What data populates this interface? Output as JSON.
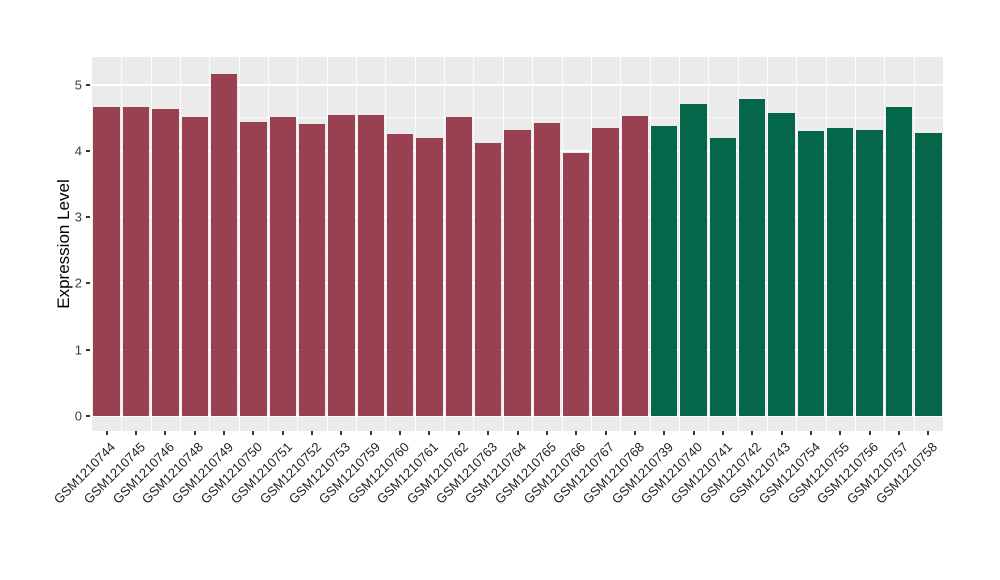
{
  "figure": {
    "background": "#FFFFFF"
  },
  "chart_data": {
    "type": "bar",
    "title": "",
    "xlabel": "",
    "ylabel": "Expression Level",
    "ylim": [
      0,
      5.41
    ],
    "yticks": [
      "0",
      "1",
      "2",
      "3",
      "4",
      "5"
    ],
    "ytick_values": [
      0,
      1,
      2,
      3,
      4,
      5
    ],
    "minor_ytick_values": [
      0.5,
      1.5,
      2.5,
      3.5,
      4.5
    ],
    "grid": "on",
    "legend": "none",
    "panel_background": "#EBEBEB",
    "gridline_color": "#FFFFFF",
    "colors": {
      "maroon": "#9A4151",
      "green": "#056749"
    },
    "categories": [
      "GSM1210744",
      "GSM1210745",
      "GSM1210746",
      "GSM1210748",
      "GSM1210749",
      "GSM1210750",
      "GSM1210751",
      "GSM1210752",
      "GSM1210753",
      "GSM1210759",
      "GSM1210760",
      "GSM1210761",
      "GSM1210762",
      "GSM1210763",
      "GSM1210764",
      "GSM1210765",
      "GSM1210766",
      "GSM1210767",
      "GSM1210768",
      "GSM1210739",
      "GSM1210740",
      "GSM1210741",
      "GSM1210742",
      "GSM1210743",
      "GSM1210754",
      "GSM1210755",
      "GSM1210756",
      "GSM1210757",
      "GSM1210758"
    ],
    "values": [
      4.66,
      4.66,
      4.63,
      4.52,
      5.16,
      4.44,
      4.51,
      4.4,
      4.54,
      4.54,
      4.26,
      4.19,
      4.51,
      4.12,
      4.31,
      4.42,
      3.97,
      4.34,
      4.53,
      4.37,
      4.71,
      4.19,
      4.79,
      4.57,
      4.3,
      4.35,
      4.31,
      4.67,
      4.27
    ],
    "bar_groups": [
      "maroon",
      "maroon",
      "maroon",
      "maroon",
      "maroon",
      "maroon",
      "maroon",
      "maroon",
      "maroon",
      "maroon",
      "maroon",
      "maroon",
      "maroon",
      "maroon",
      "maroon",
      "maroon",
      "maroon",
      "maroon",
      "maroon",
      "green",
      "green",
      "green",
      "green",
      "green",
      "green",
      "green",
      "green",
      "green",
      "green"
    ]
  }
}
